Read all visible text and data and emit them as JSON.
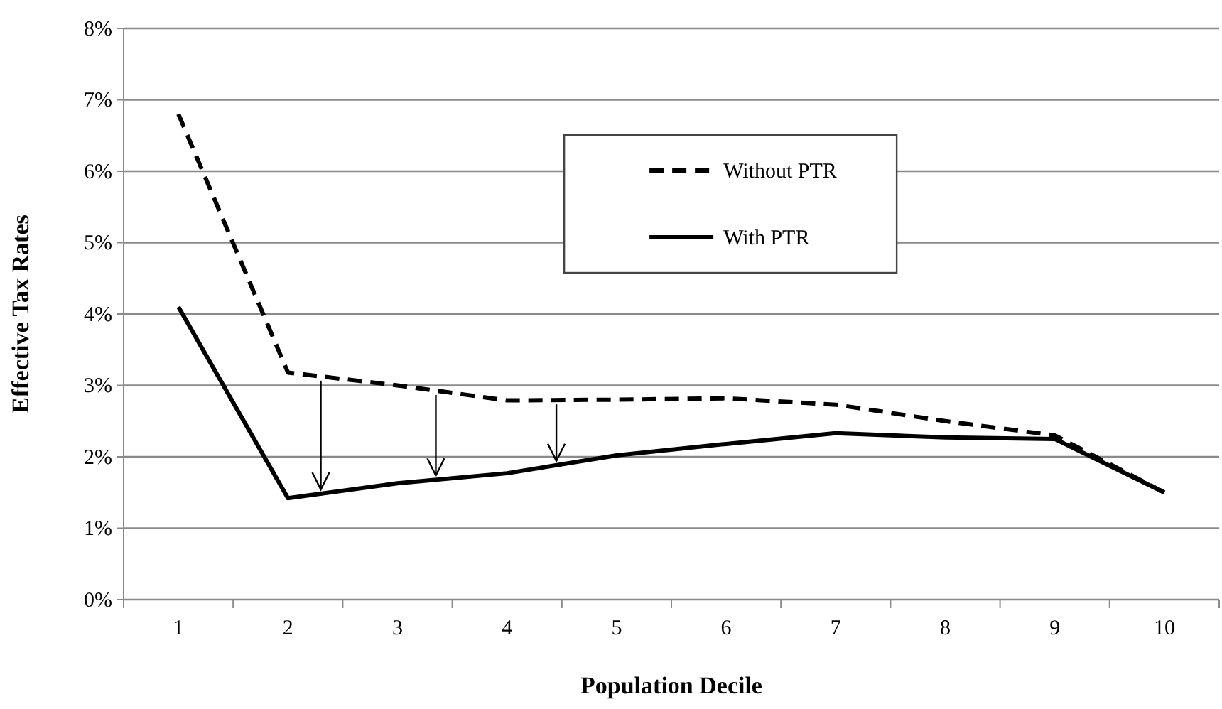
{
  "chart_data": {
    "type": "line",
    "xlabel": "Population Decile",
    "ylabel": "Effective Tax Rates",
    "categories": [
      "1",
      "2",
      "3",
      "4",
      "5",
      "6",
      "7",
      "8",
      "9",
      "10"
    ],
    "series": [
      {
        "name": "Without PTR",
        "color": "#000000",
        "line_style": "dashed",
        "values": [
          6.8,
          3.18,
          3.0,
          2.79,
          2.8,
          2.82,
          2.73,
          2.5,
          2.3,
          1.5
        ]
      },
      {
        "name": "With PTR",
        "color": "#000000",
        "line_style": "solid",
        "values": [
          4.1,
          1.42,
          1.63,
          1.77,
          2.02,
          2.18,
          2.33,
          2.27,
          2.25,
          1.5
        ]
      }
    ],
    "ylim": [
      0,
      8
    ],
    "yticks": [
      {
        "value": 0,
        "label": "0%"
      },
      {
        "value": 1,
        "label": "1%"
      },
      {
        "value": 2,
        "label": "2%"
      },
      {
        "value": 3,
        "label": "3%"
      },
      {
        "value": 4,
        "label": "4%"
      },
      {
        "value": 5,
        "label": "5%"
      },
      {
        "value": 6,
        "label": "6%"
      },
      {
        "value": 7,
        "label": "7%"
      },
      {
        "value": 8,
        "label": "8%"
      }
    ],
    "grid": "y",
    "legend": "top",
    "marker": "none"
  }
}
